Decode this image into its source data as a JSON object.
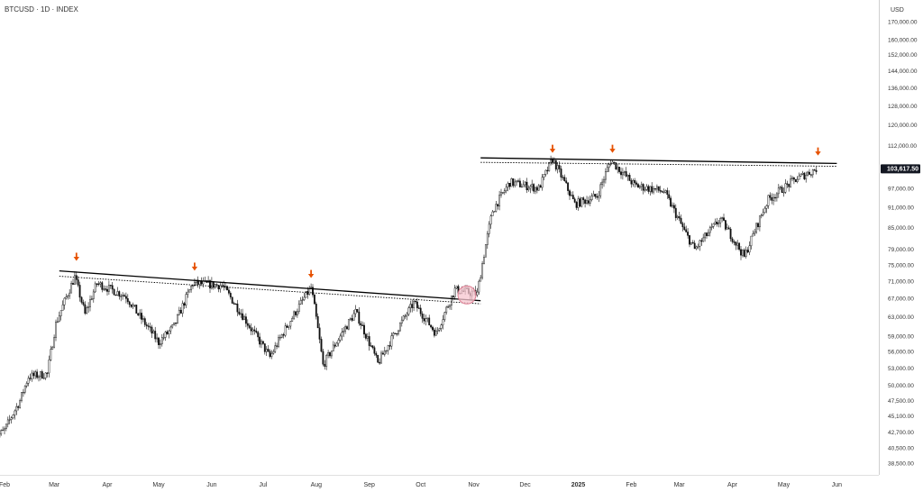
{
  "header": {
    "symbol": "BTCUSD · 1D · INDEX",
    "currency": "USD"
  },
  "chart_data": {
    "type": "candlestick",
    "ylim": [
      36000,
      172000
    ],
    "y_ticks": [
      "170,000.00",
      "160,000.00",
      "152,000.00",
      "144,000.00",
      "136,000.00",
      "128,000.00",
      "120,000.00",
      "112,000.00",
      "97,000.00",
      "91,000.00",
      "85,000.00",
      "79,000.00",
      "75,000.00",
      "71,000.00",
      "67,000.00",
      "63,000.00",
      "59,000.00",
      "56,000.00",
      "53,000.00",
      "50,000.00",
      "47,500.00",
      "45,100.00",
      "42,700.00",
      "40,500.00",
      "38,500.00"
    ],
    "y_tick_values": [
      170000,
      160000,
      152000,
      144000,
      136000,
      128000,
      120000,
      112000,
      97000,
      91000,
      85000,
      79000,
      75000,
      71000,
      67000,
      63000,
      59000,
      56000,
      53000,
      50000,
      47500,
      45100,
      42700,
      40500,
      38500
    ],
    "x_ticks": [
      "Feb",
      "Mar",
      "Apr",
      "May",
      "Jun",
      "Jul",
      "Aug",
      "Sep",
      "Oct",
      "Nov",
      "Dec",
      "2025",
      "Feb",
      "Mar",
      "Apr",
      "May",
      "Jun"
    ],
    "x_tick_dates": [
      "2024-02-01",
      "2024-03-01",
      "2024-04-01",
      "2024-05-01",
      "2024-06-01",
      "2024-07-01",
      "2024-08-01",
      "2024-09-01",
      "2024-10-01",
      "2024-11-01",
      "2024-12-01",
      "2025-01-01",
      "2025-02-01",
      "2025-03-01",
      "2025-04-01",
      "2025-05-01",
      "2025-06-01"
    ],
    "last_price_label": "103,617.50",
    "last_price": 103617.5,
    "price_path": [
      [
        "2024-01-26",
        41800
      ],
      [
        "2024-02-01",
        43000
      ],
      [
        "2024-02-10",
        47500
      ],
      [
        "2024-02-15",
        51500
      ],
      [
        "2024-02-26",
        52000
      ],
      [
        "2024-03-02",
        61500
      ],
      [
        "2024-03-13",
        72000
      ],
      [
        "2024-03-19",
        63500
      ],
      [
        "2024-03-26",
        70500
      ],
      [
        "2024-04-12",
        67500
      ],
      [
        "2024-04-19",
        63500
      ],
      [
        "2024-05-01",
        57800
      ],
      [
        "2024-05-10",
        61000
      ],
      [
        "2024-05-21",
        70500
      ],
      [
        "2024-06-07",
        70000
      ],
      [
        "2024-06-24",
        60500
      ],
      [
        "2024-07-05",
        55000
      ],
      [
        "2024-07-29",
        69500
      ],
      [
        "2024-08-05",
        53500
      ],
      [
        "2024-08-24",
        64000
      ],
      [
        "2024-09-06",
        53800
      ],
      [
        "2024-09-27",
        66000
      ],
      [
        "2024-10-10",
        59500
      ],
      [
        "2024-10-21",
        69000
      ],
      [
        "2024-11-03",
        68000
      ],
      [
        "2024-11-12",
        90000
      ],
      [
        "2024-11-22",
        99000
      ],
      [
        "2024-12-09",
        97000
      ],
      [
        "2024-12-17",
        107000
      ],
      [
        "2024-12-30",
        92000
      ],
      [
        "2025-01-12",
        94500
      ],
      [
        "2025-01-20",
        106500
      ],
      [
        "2025-02-03",
        98000
      ],
      [
        "2025-02-20",
        96000
      ],
      [
        "2025-03-04",
        84000
      ],
      [
        "2025-03-10",
        79000
      ],
      [
        "2025-03-25",
        87500
      ],
      [
        "2025-04-08",
        77000
      ],
      [
        "2025-04-22",
        93500
      ],
      [
        "2025-05-08",
        100000
      ],
      [
        "2025-05-20",
        103617.5
      ]
    ],
    "annotations": {
      "lines": [
        {
          "name": "upper-resistance-1",
          "start": [
            "2024-03-04",
            73500
          ],
          "end": [
            "2024-11-05",
            66500
          ]
        },
        {
          "name": "upper-resistance-2",
          "start": [
            "2024-11-05",
            107500
          ],
          "end": [
            "2025-06-01",
            105500
          ]
        }
      ],
      "dotted_lines": [
        {
          "name": "dotted-resistance-1",
          "start": [
            "2024-03-04",
            72200
          ],
          "end": [
            "2024-11-05",
            65800
          ]
        },
        {
          "name": "dotted-resistance-2",
          "start": [
            "2024-11-05",
            105900
          ],
          "end": [
            "2025-06-01",
            104500
          ]
        }
      ],
      "arrows": [
        {
          "name": "arrow-mar",
          "date": "2024-03-14",
          "price": 76500
        },
        {
          "name": "arrow-may",
          "date": "2024-05-22",
          "price": 74000
        },
        {
          "name": "arrow-jul",
          "date": "2024-07-29",
          "price": 72200
        },
        {
          "name": "arrow-dec",
          "date": "2024-12-17",
          "price": 110000
        },
        {
          "name": "arrow-jan",
          "date": "2025-01-21",
          "price": 110000
        },
        {
          "name": "arrow-may25",
          "date": "2025-05-21",
          "price": 109000
        }
      ],
      "circle": {
        "name": "breakout-circle",
        "date": "2024-10-28",
        "price": 67800
      }
    },
    "colors": {
      "candle": "#111111",
      "trendline": "#000000",
      "arrow": "#e65100",
      "circle_fill": "#f7c6cf",
      "circle_stroke": "#e08095",
      "last_tag": "#131722"
    }
  }
}
